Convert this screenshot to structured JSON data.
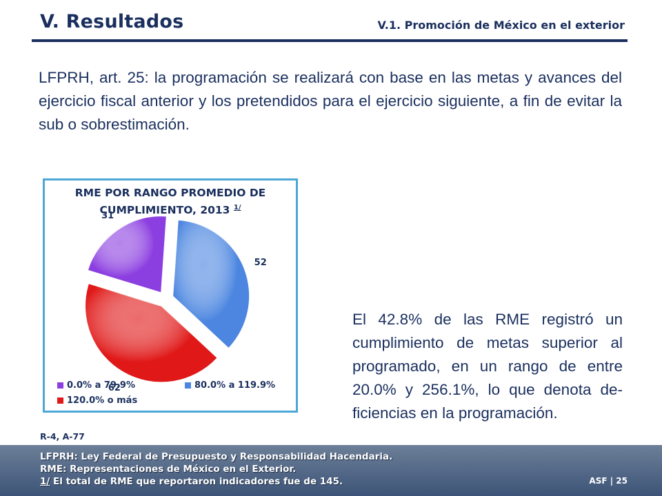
{
  "header": {
    "title": "V. Resultados",
    "subtitle": "V.1. Promoción de México en el exterior"
  },
  "intro_text": "LFPRH, art. 25: la programación se realizará con base en las metas y avances del ejercicio fiscal anterior y los pretendidos para el ejercicio siguiente, a fin de evitar la sub o sobrestimación.",
  "chart_data": {
    "type": "pie",
    "title": "RME POR RANGO PROMEDIO DE CUMPLIMIENTO, 2013",
    "title_note": "1/",
    "categories": [
      "0.0% a 79.9%",
      "80.0% a 119.9%",
      "120.0% o más"
    ],
    "values": [
      31,
      52,
      62
    ],
    "colors": [
      "#8c3fe0",
      "#4c86e0",
      "#e01818"
    ],
    "exploded": true,
    "legend_position": "bottom"
  },
  "right_text": "El 42.8% de las RME registró un cumplimiento de metas superior al programado, en un rango de entre 20.0% y 256.1%, lo que denota de-ficiencias en la programación.",
  "reference": "R-4, A-77",
  "footer": {
    "line1": "LFPRH: Ley Federal de Presupuesto y Responsabilidad Hacendaria.",
    "line2": "RME: Representaciones de México en el Exterior.",
    "line3_note": "1/",
    "line3": " El total de RME que reportaron indicadores fue de 145.",
    "page": "ASF | 25"
  }
}
